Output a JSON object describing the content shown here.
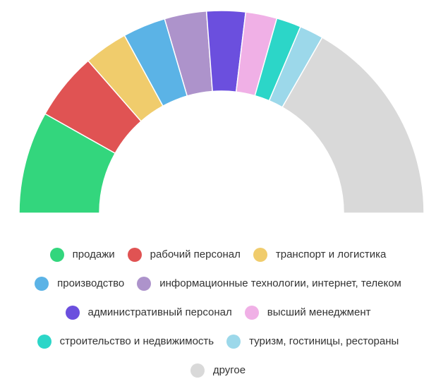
{
  "chart_data": {
    "type": "pie",
    "variant": "semi-donut",
    "categories": [
      "продажи",
      "рабочий персонал",
      "транспорт и логистика",
      "производство",
      "информационные технологии, интернет, телеком",
      "административный персонал",
      "высший менеджмент",
      "строительство и недвижимость",
      "туризм, гостиницы, рестораны",
      "другое"
    ],
    "values": [
      12.4,
      8.2,
      5.3,
      5.2,
      5.1,
      4.7,
      3.8,
      3.0,
      2.9,
      25.4
    ],
    "colors": [
      "#33d67d",
      "#e05353",
      "#f0cc6c",
      "#5bb3e6",
      "#ad93cb",
      "#6b4fde",
      "#f0b0e6",
      "#2cd6c8",
      "#9cd8ea",
      "#d9d9d9"
    ],
    "legend_position": "bottom",
    "title": ""
  }
}
